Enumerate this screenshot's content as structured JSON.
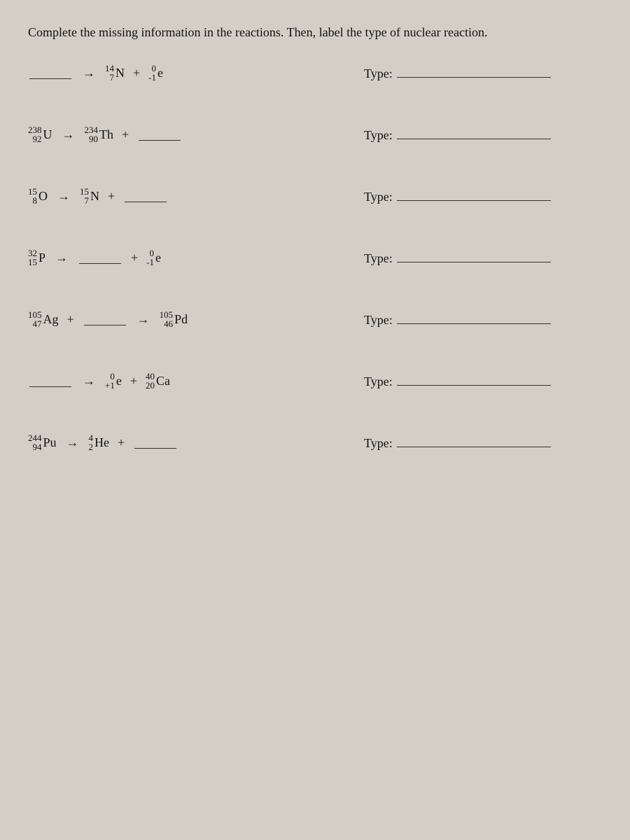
{
  "instruction": "Complete the missing information in the reactions. Then, label the type of nuclear reaction.",
  "arrow": "→",
  "plus": "+",
  "typeLabel": "Type:",
  "problems": [
    {
      "reactants": [
        {
          "mass": "",
          "atno": "",
          "sym": "",
          "blank": true
        }
      ],
      "products": [
        {
          "mass": "14",
          "atno": "7",
          "sym": "N"
        },
        {
          "mass": "0",
          "atno": "-1",
          "sym": "e"
        }
      ]
    },
    {
      "reactants": [
        {
          "mass": "238",
          "atno": "92",
          "sym": "U"
        }
      ],
      "products": [
        {
          "mass": "234",
          "atno": "90",
          "sym": "Th"
        },
        {
          "mass": "",
          "atno": "",
          "sym": "",
          "blank": true
        }
      ]
    },
    {
      "reactants": [
        {
          "mass": "15",
          "atno": "8",
          "sym": "O"
        }
      ],
      "products": [
        {
          "mass": "15",
          "atno": "7",
          "sym": "N"
        },
        {
          "mass": "",
          "atno": "",
          "sym": "",
          "blank": true
        }
      ]
    },
    {
      "reactants": [
        {
          "mass": "32",
          "atno": "15",
          "sym": "P"
        }
      ],
      "products": [
        {
          "mass": "",
          "atno": "",
          "sym": "",
          "blank": true
        },
        {
          "mass": "0",
          "atno": "-1",
          "sym": "e"
        }
      ]
    },
    {
      "reactants": [
        {
          "mass": "105",
          "atno": "47",
          "sym": "Ag"
        },
        {
          "mass": "",
          "atno": "",
          "sym": "",
          "blank": true
        }
      ],
      "products": [
        {
          "mass": "105",
          "atno": "46",
          "sym": "Pd"
        }
      ]
    },
    {
      "reactants": [
        {
          "mass": "",
          "atno": "",
          "sym": "",
          "blank": true
        }
      ],
      "products": [
        {
          "mass": "0",
          "atno": "+1",
          "sym": "e"
        },
        {
          "mass": "40",
          "atno": "20",
          "sym": "Ca"
        }
      ]
    },
    {
      "reactants": [
        {
          "mass": "244",
          "atno": "94",
          "sym": "Pu"
        }
      ],
      "products": [
        {
          "mass": "4",
          "atno": "2",
          "sym": "He"
        },
        {
          "mass": "",
          "atno": "",
          "sym": "",
          "blank": true
        }
      ]
    }
  ]
}
